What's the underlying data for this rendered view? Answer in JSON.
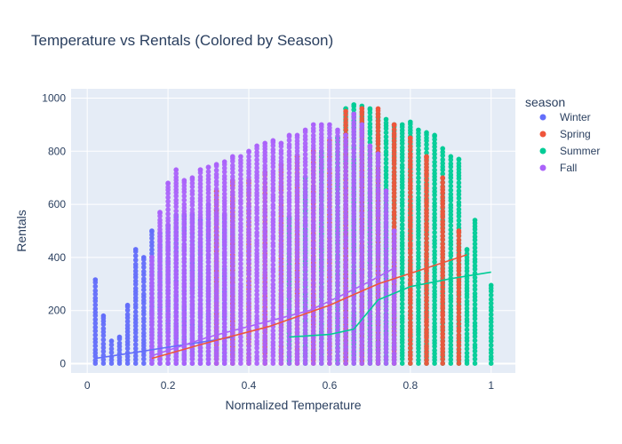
{
  "chart_data": {
    "type": "scatter",
    "title": "Temperature vs Rentals (Colored by Season)",
    "xlabel": "Normalized Temperature",
    "ylabel": "Rentals",
    "xlim": [
      -0.04,
      1.06
    ],
    "ylim": [
      -35,
      1035
    ],
    "x_ticks": [
      0,
      0.2,
      0.4,
      0.6,
      0.8,
      1
    ],
    "x_tick_labels": [
      "0",
      "0.2",
      "0.4",
      "0.6",
      "0.8",
      "1"
    ],
    "y_ticks": [
      0,
      200,
      400,
      600,
      800,
      1000
    ],
    "y_tick_labels": [
      "0",
      "200",
      "400",
      "600",
      "800",
      "1000"
    ],
    "grid": true,
    "plot_background": "#E5ECF6",
    "legend": {
      "title": "season",
      "placement": "right"
    },
    "series": [
      {
        "name": "Winter",
        "color": "#636EFA",
        "x_range": [
          0.02,
          0.36
        ],
        "columns": [
          {
            "x": 0.02,
            "max": 316
          },
          {
            "x": 0.04,
            "max": 180
          },
          {
            "x": 0.06,
            "max": 85
          },
          {
            "x": 0.08,
            "max": 100
          },
          {
            "x": 0.1,
            "max": 220
          },
          {
            "x": 0.12,
            "max": 430
          },
          {
            "x": 0.14,
            "max": 400
          },
          {
            "x": 0.16,
            "max": 500
          },
          {
            "x": 0.18,
            "max": 490
          },
          {
            "x": 0.2,
            "max": 520
          },
          {
            "x": 0.22,
            "max": 560
          },
          {
            "x": 0.24,
            "max": 560
          },
          {
            "x": 0.26,
            "max": 560
          },
          {
            "x": 0.28,
            "max": 540
          },
          {
            "x": 0.3,
            "max": 600
          },
          {
            "x": 0.32,
            "max": 580
          },
          {
            "x": 0.34,
            "max": 560
          },
          {
            "x": 0.36,
            "max": 600
          }
        ],
        "trend": [
          [
            0.02,
            20
          ],
          [
            0.1,
            38
          ],
          [
            0.2,
            62
          ],
          [
            0.3,
            85
          ],
          [
            0.36,
            100
          ]
        ]
      },
      {
        "name": "Spring",
        "color": "#EF553B",
        "x_range": [
          0.16,
          0.94
        ],
        "columns": [
          {
            "x": 0.32,
            "max": 650
          },
          {
            "x": 0.36,
            "max": 690
          },
          {
            "x": 0.4,
            "max": 690
          },
          {
            "x": 0.44,
            "max": 720
          },
          {
            "x": 0.48,
            "max": 750
          },
          {
            "x": 0.52,
            "max": 780
          },
          {
            "x": 0.56,
            "max": 800
          },
          {
            "x": 0.6,
            "max": 840
          },
          {
            "x": 0.64,
            "max": 950
          },
          {
            "x": 0.68,
            "max": 960
          },
          {
            "x": 0.72,
            "max": 960
          },
          {
            "x": 0.76,
            "max": 900
          },
          {
            "x": 0.8,
            "max": 850
          },
          {
            "x": 0.84,
            "max": 780
          },
          {
            "x": 0.88,
            "max": 700
          },
          {
            "x": 0.92,
            "max": 500
          }
        ],
        "trend": [
          [
            0.16,
            20
          ],
          [
            0.3,
            80
          ],
          [
            0.45,
            140
          ],
          [
            0.6,
            220
          ],
          [
            0.72,
            300
          ],
          [
            0.8,
            340
          ],
          [
            0.94,
            410
          ]
        ]
      },
      {
        "name": "Summer",
        "color": "#00CC96",
        "x_range": [
          0.5,
          1.0
        ],
        "columns": [
          {
            "x": 0.5,
            "max": 550
          },
          {
            "x": 0.54,
            "max": 700
          },
          {
            "x": 0.58,
            "max": 800
          },
          {
            "x": 0.62,
            "max": 850
          },
          {
            "x": 0.64,
            "max": 960
          },
          {
            "x": 0.66,
            "max": 975
          },
          {
            "x": 0.68,
            "max": 970
          },
          {
            "x": 0.7,
            "max": 960
          },
          {
            "x": 0.72,
            "max": 940
          },
          {
            "x": 0.74,
            "max": 920
          },
          {
            "x": 0.76,
            "max": 900
          },
          {
            "x": 0.78,
            "max": 900
          },
          {
            "x": 0.8,
            "max": 910
          },
          {
            "x": 0.82,
            "max": 880
          },
          {
            "x": 0.84,
            "max": 870
          },
          {
            "x": 0.86,
            "max": 860
          },
          {
            "x": 0.88,
            "max": 810
          },
          {
            "x": 0.9,
            "max": 780
          },
          {
            "x": 0.92,
            "max": 770
          },
          {
            "x": 0.94,
            "max": 430
          },
          {
            "x": 0.96,
            "max": 540
          },
          {
            "x": 1.0,
            "max": 295
          }
        ],
        "trend": [
          [
            0.5,
            100
          ],
          [
            0.6,
            110
          ],
          [
            0.66,
            130
          ],
          [
            0.72,
            240
          ],
          [
            0.8,
            290
          ],
          [
            0.9,
            320
          ],
          [
            1.0,
            345
          ]
        ]
      },
      {
        "name": "Fall",
        "color": "#AB63FA",
        "x_range": [
          0.16,
          0.78
        ],
        "columns": [
          {
            "x": 0.16,
            "max": 400
          },
          {
            "x": 0.18,
            "max": 570
          },
          {
            "x": 0.2,
            "max": 680
          },
          {
            "x": 0.22,
            "max": 730
          },
          {
            "x": 0.24,
            "max": 690
          },
          {
            "x": 0.26,
            "max": 700
          },
          {
            "x": 0.28,
            "max": 730
          },
          {
            "x": 0.3,
            "max": 740
          },
          {
            "x": 0.32,
            "max": 750
          },
          {
            "x": 0.34,
            "max": 760
          },
          {
            "x": 0.36,
            "max": 780
          },
          {
            "x": 0.38,
            "max": 780
          },
          {
            "x": 0.4,
            "max": 800
          },
          {
            "x": 0.42,
            "max": 820
          },
          {
            "x": 0.44,
            "max": 830
          },
          {
            "x": 0.46,
            "max": 840
          },
          {
            "x": 0.48,
            "max": 830
          },
          {
            "x": 0.5,
            "max": 860
          },
          {
            "x": 0.52,
            "max": 860
          },
          {
            "x": 0.54,
            "max": 880
          },
          {
            "x": 0.56,
            "max": 900
          },
          {
            "x": 0.58,
            "max": 900
          },
          {
            "x": 0.6,
            "max": 900
          },
          {
            "x": 0.62,
            "max": 880
          },
          {
            "x": 0.64,
            "max": 860
          },
          {
            "x": 0.66,
            "max": 940
          },
          {
            "x": 0.68,
            "max": 900
          },
          {
            "x": 0.7,
            "max": 820
          },
          {
            "x": 0.72,
            "max": 790
          },
          {
            "x": 0.74,
            "max": 650
          },
          {
            "x": 0.76,
            "max": 500
          }
        ],
        "trend": [
          [
            0.16,
            30
          ],
          [
            0.3,
            100
          ],
          [
            0.45,
            160
          ],
          [
            0.55,
            200
          ],
          [
            0.62,
            250
          ],
          [
            0.7,
            310
          ],
          [
            0.76,
            360
          ]
        ]
      }
    ]
  }
}
